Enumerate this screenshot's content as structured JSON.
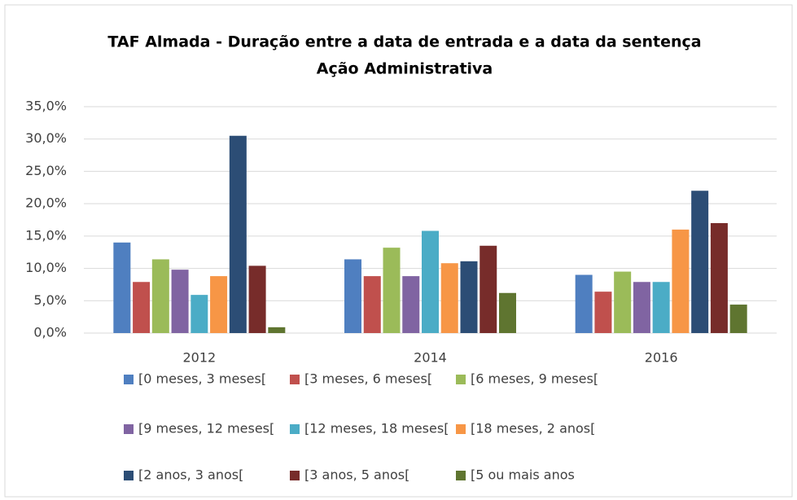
{
  "chart_data": {
    "type": "bar",
    "title": "TAF Almada - Duração entre a data de entrada e a data da sentença",
    "subtitle": "Ação Administrativa",
    "categories": [
      "2012",
      "2014",
      "2016"
    ],
    "series": [
      {
        "name": "[0 meses, 3 meses[",
        "color": "#4f7fc0",
        "values": [
          14.0,
          11.4,
          9.0
        ]
      },
      {
        "name": "[3 meses, 6 meses[",
        "color": "#c0504d",
        "values": [
          7.9,
          8.8,
          6.4
        ]
      },
      {
        "name": "[6 meses, 9 meses[",
        "color": "#9bbb59",
        "values": [
          11.4,
          13.2,
          9.5
        ]
      },
      {
        "name": "[9 meses, 12 meses[",
        "color": "#8064a2",
        "values": [
          9.8,
          8.8,
          7.9
        ]
      },
      {
        "name": "[12 meses, 18 meses[",
        "color": "#4bacc6",
        "values": [
          5.9,
          15.8,
          7.9
        ]
      },
      {
        "name": "[18 meses, 2 anos[",
        "color": "#f79646",
        "values": [
          8.8,
          10.8,
          16.0
        ]
      },
      {
        "name": "[2 anos, 3 anos[",
        "color": "#2c4d75",
        "values": [
          30.5,
          11.1,
          22.0
        ]
      },
      {
        "name": "[3 anos, 5 anos[",
        "color": "#772c2a",
        "values": [
          10.4,
          13.5,
          17.0
        ]
      },
      {
        "name": "[5 ou mais anos",
        "color": "#5f7530",
        "values": [
          0.9,
          6.2,
          4.4
        ]
      }
    ],
    "ylim": [
      0,
      35
    ],
    "yticks": [
      {
        "value": 0,
        "label": "0,0%"
      },
      {
        "value": 5,
        "label": "5,0%"
      },
      {
        "value": 10,
        "label": "10,0%"
      },
      {
        "value": 15,
        "label": "15,0%"
      },
      {
        "value": 20,
        "label": "20,0%"
      },
      {
        "value": 25,
        "label": "25,0%"
      },
      {
        "value": 30,
        "label": "30,0%"
      },
      {
        "value": 35,
        "label": "35,0%"
      }
    ],
    "grid": true,
    "legend": "bottom"
  }
}
